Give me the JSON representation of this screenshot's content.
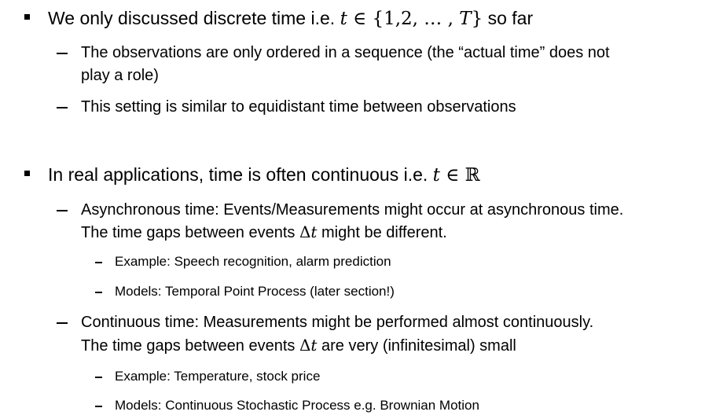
{
  "bullets": [
    {
      "text_before": "We only discussed discrete time i.e. ",
      "math_var": "t",
      "math_rest": " ∈ {1,2, … , ",
      "math_var2": "T",
      "math_close": "}",
      "text_after": " so far",
      "subs": [
        {
          "lines": [
            "The observations are only ordered in a sequence (the “actual time” does not",
            "play a role)"
          ]
        },
        {
          "lines": [
            "This setting is similar to equidistant time between observations"
          ]
        }
      ]
    },
    {
      "text_before": "In real applications, time is often continuous i.e. ",
      "math_var": "t",
      "math_rest": " ∈ ℝ",
      "subs": [
        {
          "line1": "Asynchronous time: Events/Measurements might occur at asynchronous time.",
          "line2_before": "The time gaps between events ",
          "line2_delta": "Δ",
          "line2_var": "t",
          "line2_after": " might be different.",
          "subsubs": [
            "Example: Speech recognition, alarm prediction",
            "Models: Temporal Point Process (later section!)"
          ]
        },
        {
          "line1": "Continuous time: Measurements might be performed almost continuously.",
          "line2_before": "The time gaps between events ",
          "line2_delta": "Δ",
          "line2_var": "t",
          "line2_after": " are very (infinitesimal) small",
          "subsubs": [
            "Example: Temperature, stock price",
            "Models: Continuous Stochastic Process e.g. Brownian Motion"
          ]
        }
      ]
    }
  ]
}
